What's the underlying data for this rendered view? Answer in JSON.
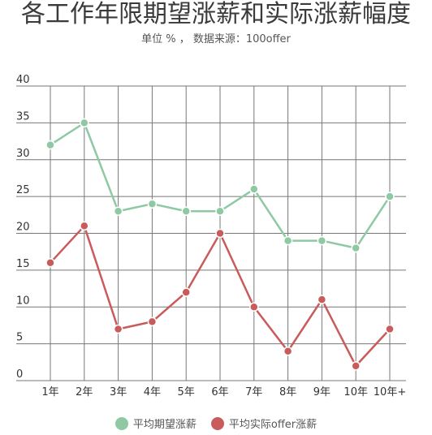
{
  "chart_data": {
    "type": "line",
    "title": "各工作年限期望涨薪和实际涨薪幅度",
    "subtitle": "单位 % ， 数据来源：100offer",
    "categories": [
      "1年",
      "2年",
      "3年",
      "4年",
      "5年",
      "6年",
      "7年",
      "8年",
      "9年",
      "10年",
      "10年+"
    ],
    "ylim": [
      0,
      40
    ],
    "yticks": [
      0,
      5,
      10,
      15,
      20,
      25,
      30,
      35,
      40
    ],
    "grid": true,
    "legend_position": "bottom",
    "series": [
      {
        "name": "平均期望涨薪",
        "color": "#8fc9a3",
        "values": [
          32,
          35,
          23,
          24,
          23,
          23,
          26,
          19,
          19,
          18,
          25
        ]
      },
      {
        "name": "平均实际offer涨薪",
        "color": "#c95b5b",
        "values": [
          16,
          21,
          7,
          8,
          12,
          20,
          10,
          4,
          11,
          2,
          7
        ]
      }
    ]
  }
}
